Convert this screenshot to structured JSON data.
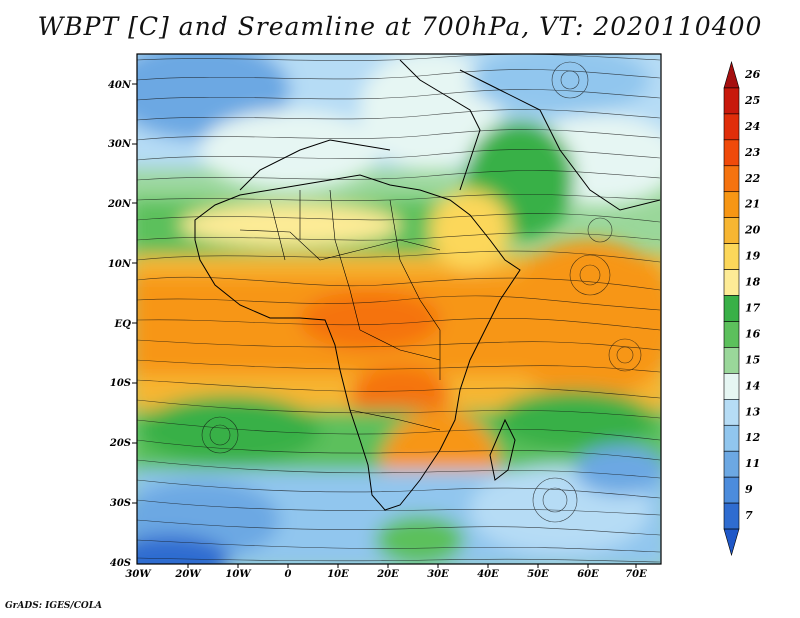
{
  "title": "WBPT [C] and Sreamline at 700hPa, VT: 2020110400",
  "credit": "GrADS: IGES/COLA",
  "lat_labels": [
    "40N",
    "30N",
    "20N",
    "10N",
    "EQ",
    "10S",
    "20S",
    "30S",
    "40S"
  ],
  "lon_labels": [
    "30W",
    "20W",
    "10W",
    "0",
    "10E",
    "20E",
    "30E",
    "40E",
    "50E",
    "60E",
    "70E"
  ],
  "colorbar": {
    "labels": [
      "26",
      "25",
      "24",
      "23",
      "22",
      "21",
      "20",
      "19",
      "18",
      "17",
      "16",
      "15",
      "14",
      "13",
      "12",
      "11",
      "9",
      "7"
    ],
    "colors": [
      "#a50f0f",
      "#c8190c",
      "#e02e0a",
      "#f04a0a",
      "#f5730f",
      "#f79614",
      "#f7b632",
      "#fcd75a",
      "#fdeb96",
      "#39b047",
      "#5cc05c",
      "#9ad79a",
      "#e6f6f3",
      "#b6dcf5",
      "#91c6ee",
      "#6ca8e3",
      "#4c8cdc",
      "#2f6cd0",
      "#1f58c8"
    ]
  }
}
